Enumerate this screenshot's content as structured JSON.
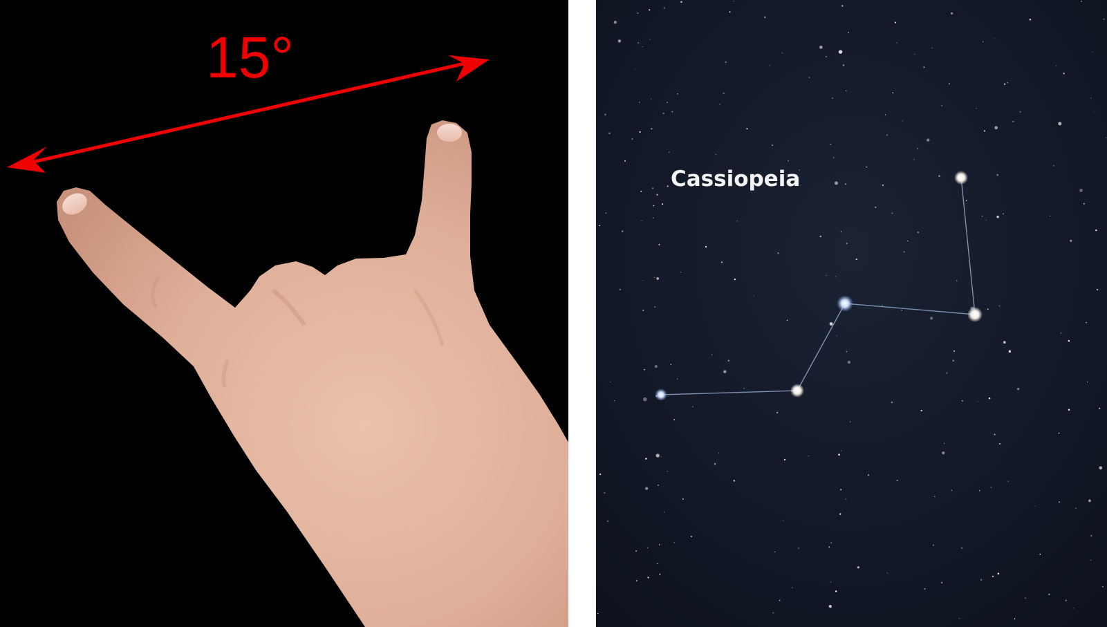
{
  "hand_panel": {
    "angle_label": "15°",
    "arrow_color": "#f00000",
    "background_color": "#000000",
    "skin_color": "#e2b39e"
  },
  "sky_panel": {
    "constellation_label": "Cassiopeia",
    "background_color": "#0f1522",
    "line_color": "#8fa6c8"
  }
}
